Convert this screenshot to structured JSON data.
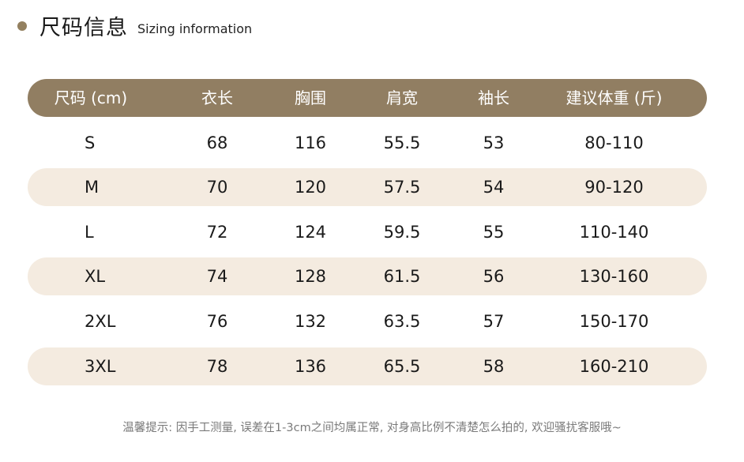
{
  "header": {
    "title_cn": "尺码信息",
    "title_en": "Sizing information"
  },
  "table": {
    "columns": [
      "尺码 (cm)",
      "衣长",
      "胸围",
      "肩宽",
      "袖长",
      "建议体重 (斤)"
    ],
    "rows": [
      [
        "S",
        "68",
        "116",
        "55.5",
        "53",
        "80-110"
      ],
      [
        "M",
        "70",
        "120",
        "57.5",
        "54",
        "90-120"
      ],
      [
        "L",
        "72",
        "124",
        "59.5",
        "55",
        "110-140"
      ],
      [
        "XL",
        "74",
        "128",
        "61.5",
        "56",
        "130-160"
      ],
      [
        "2XL",
        "76",
        "132",
        "63.5",
        "57",
        "150-170"
      ],
      [
        "3XL",
        "78",
        "136",
        "65.5",
        "58",
        "160-210"
      ]
    ]
  },
  "note": "温馨提示: 因手工测量, 误差在1-3cm之间均属正常, 对身高比例不清楚怎么拍的, 欢迎骚扰客服哦~",
  "colors": {
    "header_bg": "#917e62",
    "stripe_bg": "#f4ebe0",
    "bullet": "#93805f"
  }
}
